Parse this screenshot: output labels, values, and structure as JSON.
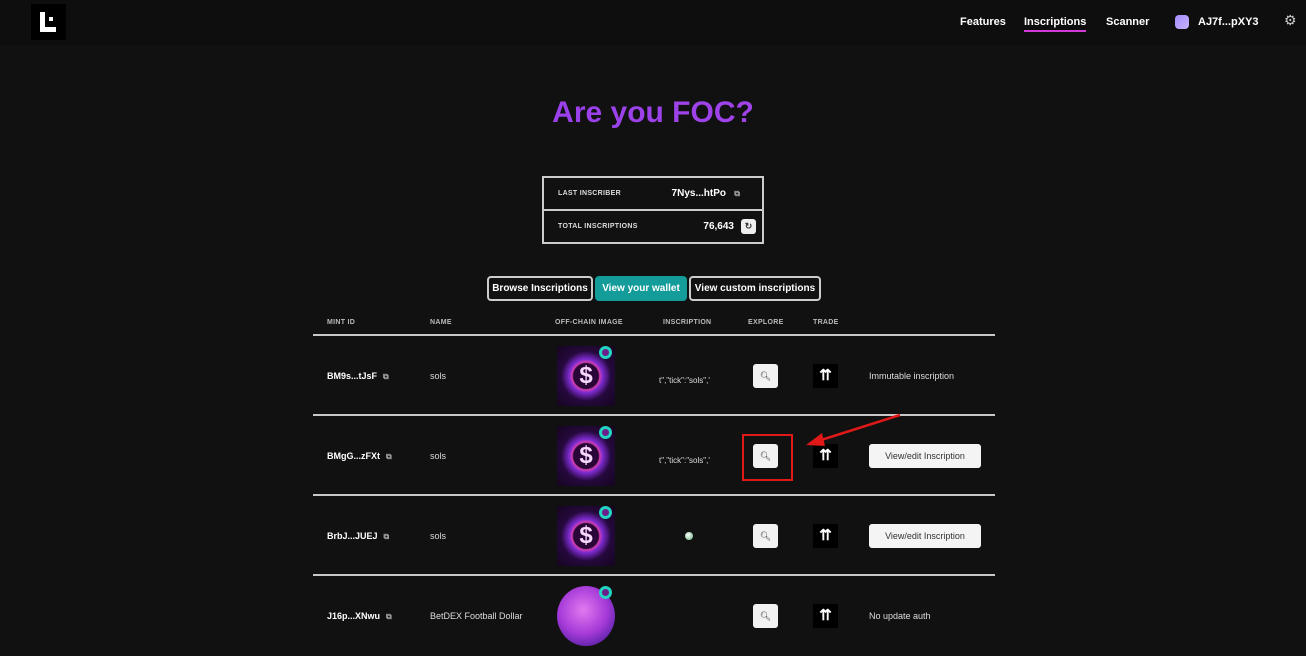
{
  "nav": {
    "links": [
      "Features",
      "Inscriptions",
      "Scanner"
    ],
    "active": "Inscriptions",
    "wallet": "AJ7f...pXY3"
  },
  "title": "Are you FOC?",
  "stats": {
    "last_inscriber_label": "LAST INSCRIBER",
    "last_inscriber_value": "7Nys...htPo",
    "total_label": "TOTAL INSCRIPTIONS",
    "total_value": "76,643"
  },
  "tabs": [
    "Browse Inscriptions",
    "View your wallet",
    "View custom inscriptions"
  ],
  "active_tab": "View your wallet",
  "columns": [
    "MINT ID",
    "NAME",
    "OFF-CHAIN IMAGE",
    "INSCRIPTION",
    "EXPLORE",
    "TRADE"
  ],
  "rows": [
    {
      "mint": "BM9s...tJsF",
      "name": "sols",
      "inscription": "t\",\"tick\":\"sols\",'",
      "action_text": "Immutable inscription",
      "action_button": null
    },
    {
      "mint": "BMgG...zFXt",
      "name": "sols",
      "inscription": "t\",\"tick\":\"sols\",'",
      "action_text": null,
      "action_button": "View/edit Inscription"
    },
    {
      "mint": "BrbJ...JUEJ",
      "name": "sols",
      "inscription": "",
      "action_text": null,
      "action_button": "View/edit Inscription"
    },
    {
      "mint": "J16p...XNwu",
      "name": "BetDEX Football Dollar",
      "inscription": "",
      "action_text": "No update auth",
      "action_button": null
    }
  ],
  "colors": {
    "accent": "#139c9a",
    "title": "#9b3cf0",
    "annotation": "#e01818"
  }
}
